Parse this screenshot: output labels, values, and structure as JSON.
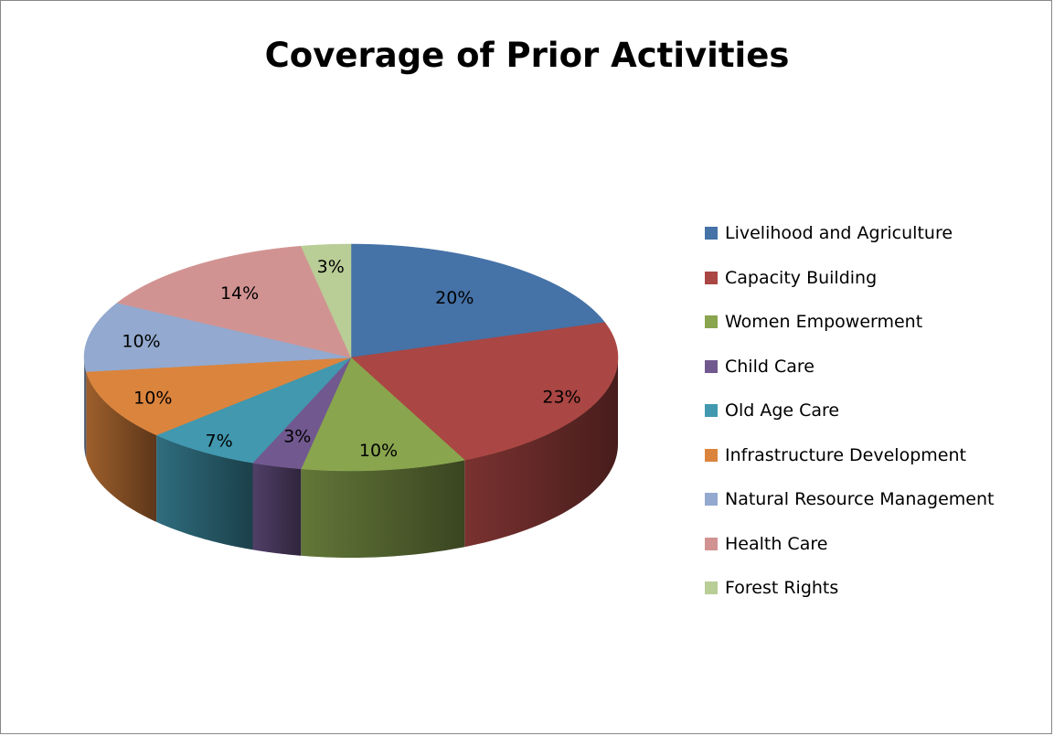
{
  "chart_data": {
    "type": "pie",
    "title": "Coverage of Prior Activities",
    "legend_position": "right",
    "style": "3d",
    "slices": [
      {
        "label": "Livelihood and Agriculture",
        "value": 20,
        "display": "20%",
        "color": "#4572A7"
      },
      {
        "label": "Capacity Building",
        "value": 23,
        "display": "23%",
        "color": "#AA4643"
      },
      {
        "label": "Women Empowerment",
        "value": 10,
        "display": "10%",
        "color": "#89A54E"
      },
      {
        "label": "Child Care",
        "value": 3,
        "display": "3%",
        "color": "#71588F"
      },
      {
        "label": "Old Age Care",
        "value": 7,
        "display": "7%",
        "color": "#4198AF"
      },
      {
        "label": "Infrastructure Development",
        "value": 10,
        "display": "10%",
        "color": "#DB843D"
      },
      {
        "label": "Natural Resource Management",
        "value": 10,
        "display": "10%",
        "color": "#93A9CF"
      },
      {
        "label": "Health Care",
        "value": 14,
        "display": "14%",
        "color": "#D19392"
      },
      {
        "label": "Forest Rights",
        "value": 3,
        "display": "3%",
        "color": "#B9CD96"
      }
    ]
  }
}
